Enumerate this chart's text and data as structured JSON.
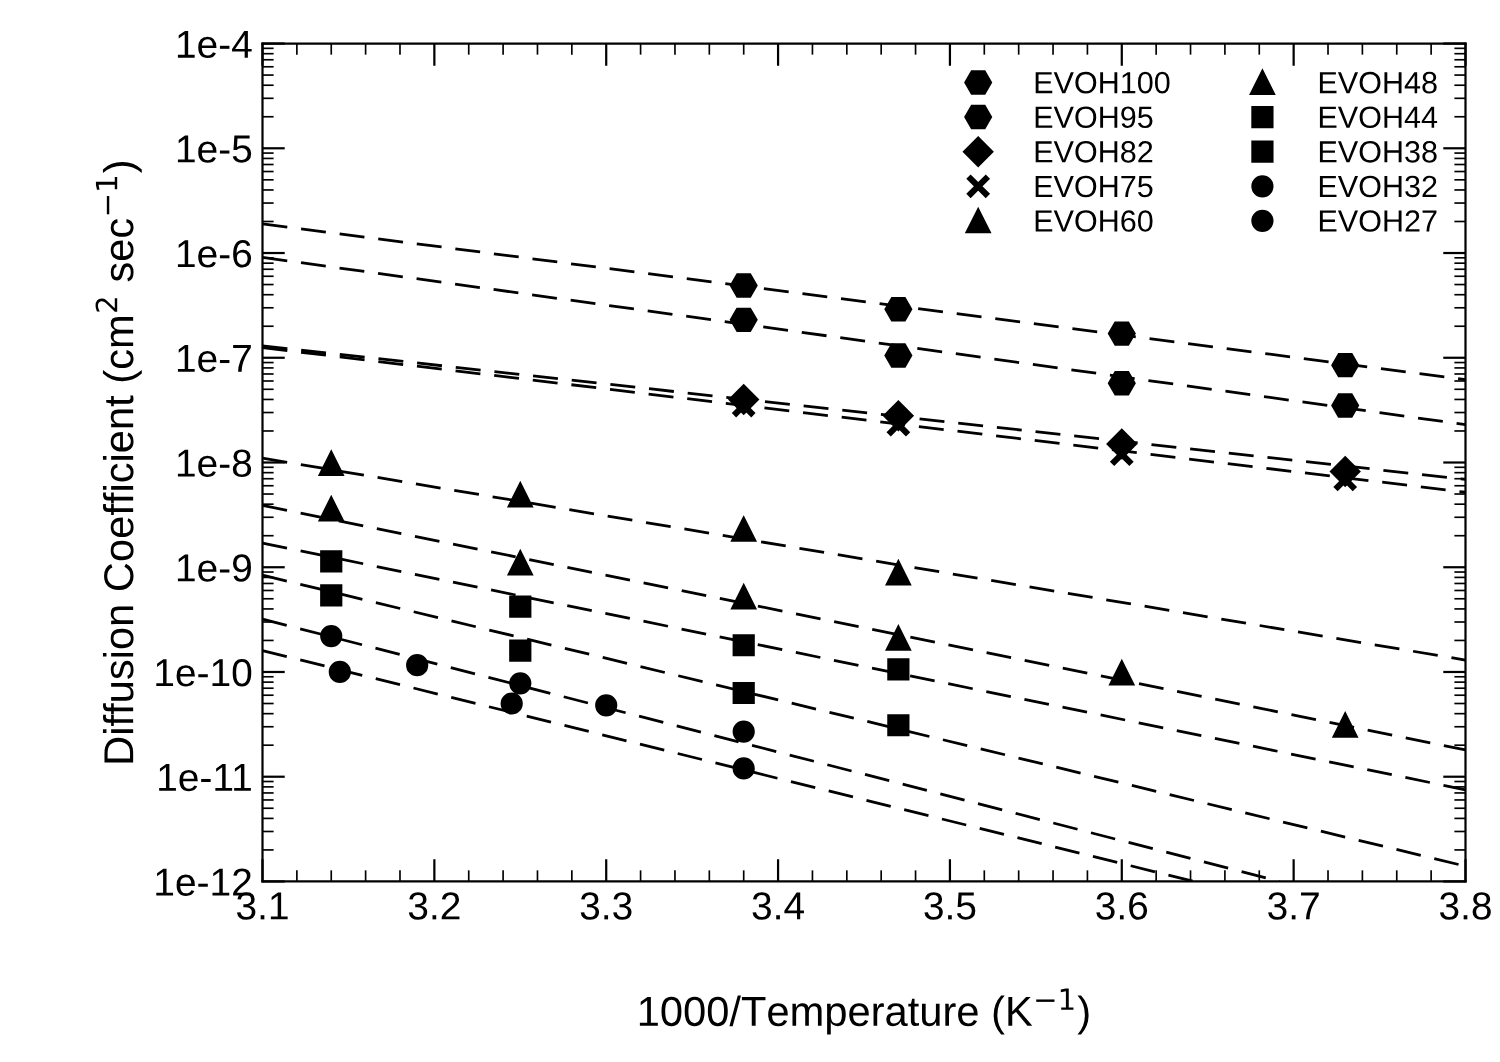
{
  "chart_data": {
    "type": "scatter",
    "xlabel": "1000/Temperature (K$^{−1}$)",
    "ylabel": "Diffusion Coefficient (cm$^{2}$ sec$^{−1}$)",
    "log": "y",
    "xlim": [
      3.1,
      3.8
    ],
    "xticks": [
      3.1,
      3.2,
      3.3,
      3.4,
      3.5,
      3.6,
      3.7,
      3.8
    ],
    "ylim": [
      1e-12,
      0.0001
    ],
    "yticks": [
      {
        "value": 1e-12,
        "label": "1e-12"
      },
      {
        "value": 1e-11,
        "label": "1e-11"
      },
      {
        "value": 1e-10,
        "label": "1e-10"
      },
      {
        "value": 1e-09,
        "label": "1e-9"
      },
      {
        "value": 1e-08,
        "label": "1e-8"
      },
      {
        "value": 1e-07,
        "label": "1e-7"
      },
      {
        "value": 1e-06,
        "label": "1e-6"
      },
      {
        "value": 1e-05,
        "label": "1e-5"
      },
      {
        "value": 0.0001,
        "label": "1e-4"
      }
    ],
    "grid": false,
    "legend": "top right",
    "series": [
      {
        "name": "EVOH100",
        "color": "#000000",
        "x": [
          3.38,
          3.47,
          3.6,
          3.73
        ],
        "values": [
          4.9e-07,
          2.9e-07,
          1.7e-07,
          8.5e-08
        ]
      },
      {
        "name": "EVOH95",
        "color": "#000000",
        "x": [
          3.38,
          3.47,
          3.6,
          3.73
        ],
        "values": [
          2.3e-07,
          1.05e-07,
          5.7e-08,
          3.5e-08
        ]
      },
      {
        "name": "EVOH82",
        "color": "#000000",
        "marker": "diamond",
        "x": [
          3.38,
          3.47,
          3.6,
          3.73
        ],
        "values": [
          4e-08,
          2.8e-08,
          1.5e-08,
          8.2e-09
        ]
      },
      {
        "name": "EVOH75",
        "color": "#000000",
        "marker": "cross",
        "x": [
          3.38,
          3.47,
          3.6,
          3.73
        ],
        "values": [
          3.5e-08,
          2.3e-08,
          1.2e-08,
          6.9e-09
        ]
      },
      {
        "name": "EVOH60",
        "color": "#000000",
        "marker": "triangle",
        "x": [
          3.14,
          3.25,
          3.38,
          3.47
        ],
        "values": [
          9.8e-09,
          4.9e-09,
          2.3e-09,
          8.8e-10
        ]
      },
      {
        "name": "EVOH48",
        "color": "#000000",
        "marker": "triangle",
        "x": [
          3.14,
          3.25,
          3.38,
          3.47,
          3.6,
          3.73
        ],
        "values": [
          3.6e-09,
          1.1e-09,
          5.2e-10,
          2.1e-10,
          9.8e-11,
          3.1e-11
        ]
      },
      {
        "name": "EVOH44",
        "color": "#000000",
        "marker": "square",
        "x": [
          3.14,
          3.25,
          3.38,
          3.47
        ],
        "values": [
          1.14e-09,
          4.2e-10,
          1.8e-10,
          1.06e-10
        ]
      },
      {
        "name": "EVOH38",
        "color": "#000000",
        "marker": "square",
        "x": [
          3.14,
          3.25,
          3.38,
          3.47
        ],
        "values": [
          5.4e-10,
          1.6e-10,
          6.3e-11,
          3.1e-11
        ]
      },
      {
        "name": "EVOH32",
        "color": "#000000",
        "marker": "circle",
        "x": [
          3.14,
          3.19,
          3.25,
          3.3,
          3.38
        ],
        "values": [
          2.2e-10,
          1.16e-10,
          7.8e-11,
          4.8e-11,
          2.7e-11
        ]
      },
      {
        "name": "EVOH27",
        "color": "#000000",
        "marker": "circle",
        "x": [
          3.145,
          3.245,
          3.38
        ],
        "values": [
          1e-10,
          5e-11,
          1.2e-11
        ]
      },
      {
        "type": "line",
        "color": "#000000",
        "marker": "none",
        "line_style": "dashed",
        "x": [
          3.1,
          3.8
        ],
        "values": [
          1.9e-06,
          6.2e-08
        ]
      },
      {
        "type": "line",
        "color": "#000000",
        "marker": "none",
        "line_style": "dashed",
        "x": [
          3.1,
          3.8
        ],
        "values": [
          9.1e-07,
          2.3e-08
        ]
      },
      {
        "type": "line",
        "color": "#000000",
        "marker": "none",
        "line_style": "dashed",
        "x": [
          3.1,
          3.8
        ],
        "values": [
          1.3e-07,
          6.9e-09
        ]
      },
      {
        "type": "line",
        "color": "#000000",
        "marker": "none",
        "line_style": "dashed",
        "x": [
          3.1,
          3.8
        ],
        "values": [
          1.25e-07,
          5.2e-09
        ]
      },
      {
        "type": "line",
        "color": "#000000",
        "marker": "none",
        "line_style": "dashed",
        "x": [
          3.1,
          3.8
        ],
        "values": [
          1.1e-08,
          1.3e-10
        ]
      },
      {
        "type": "line",
        "color": "#000000",
        "marker": "none",
        "line_style": "dashed",
        "x": [
          3.1,
          3.8
        ],
        "values": [
          3.9e-09,
          1.8e-11
        ]
      },
      {
        "type": "line",
        "color": "#000000",
        "marker": "none",
        "line_style": "dashed",
        "x": [
          3.1,
          3.8
        ],
        "values": [
          1.7e-09,
          7.5e-12
        ]
      },
      {
        "type": "line",
        "color": "#000000",
        "marker": "none",
        "line_style": "dashed",
        "x": [
          3.1,
          3.8
        ],
        "values": [
          8.4e-10,
          1.4e-12
        ]
      },
      {
        "type": "line",
        "color": "#000000",
        "marker": "none",
        "line_style": "dashed",
        "x": [
          3.1,
          3.692
        ],
        "values": [
          3.2e-10,
          1e-12
        ]
      },
      {
        "type": "line",
        "color": "#000000",
        "marker": "none",
        "line_style": "dashed",
        "x": [
          3.1,
          3.642
        ],
        "values": [
          1.6e-10,
          1e-12
        ]
      }
    ]
  }
}
